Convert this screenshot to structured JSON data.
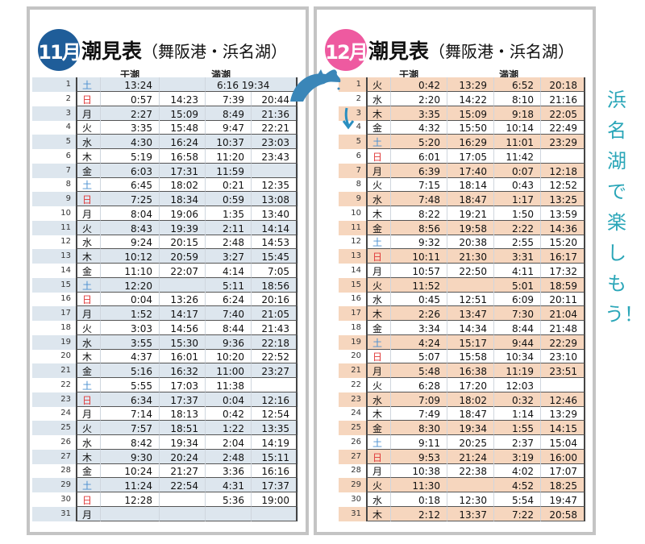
{
  "november": {
    "month_badge": "11月",
    "title": "潮見表",
    "subtitle": "（舞阪港・浜名湖）",
    "badge_color": "#1f5d99",
    "row_shade": "#dde6ee",
    "low_label": "干潮",
    "high_label": "満潮",
    "rows": [
      [
        "1",
        "土",
        "13:24",
        "",
        "6:16 19:34",
        ""
      ],
      [
        "2",
        "日",
        "0:57",
        "14:23",
        "7:39",
        "20:44"
      ],
      [
        "3",
        "月",
        "2:27",
        "15:09",
        "8:49",
        "21:36"
      ],
      [
        "4",
        "火",
        "3:35",
        "15:48",
        "9:47",
        "22:21"
      ],
      [
        "5",
        "水",
        "4:30",
        "16:24",
        "10:37",
        "23:03"
      ],
      [
        "6",
        "木",
        "5:19",
        "16:58",
        "11:20",
        "23:43"
      ],
      [
        "7",
        "金",
        "6:03",
        "17:31",
        "11:59",
        ""
      ],
      [
        "8",
        "土",
        "6:45",
        "18:02",
        "0:21",
        "12:35"
      ],
      [
        "9",
        "日",
        "7:25",
        "18:34",
        "0:59",
        "13:08"
      ],
      [
        "10",
        "月",
        "8:04",
        "19:06",
        "1:35",
        "13:40"
      ],
      [
        "11",
        "火",
        "8:43",
        "19:39",
        "2:11",
        "14:14"
      ],
      [
        "12",
        "水",
        "9:24",
        "20:15",
        "2:48",
        "14:53"
      ],
      [
        "13",
        "木",
        "10:12",
        "20:59",
        "3:27",
        "15:45"
      ],
      [
        "14",
        "金",
        "11:10",
        "22:07",
        "4:14",
        "7:05"
      ],
      [
        "15",
        "土",
        "12:20",
        "",
        "5:11",
        "18:56"
      ],
      [
        "16",
        "日",
        "0:04",
        "13:26",
        "6:24",
        "20:16"
      ],
      [
        "17",
        "月",
        "1:52",
        "14:17",
        "7:40",
        "21:05"
      ],
      [
        "18",
        "火",
        "3:03",
        "14:56",
        "8:44",
        "21:43"
      ],
      [
        "19",
        "水",
        "3:55",
        "15:30",
        "9:36",
        "22:18"
      ],
      [
        "20",
        "木",
        "4:37",
        "16:01",
        "10:20",
        "22:52"
      ],
      [
        "21",
        "金",
        "5:16",
        "16:32",
        "11:00",
        "23:27"
      ],
      [
        "22",
        "土",
        "5:55",
        "17:03",
        "11:38",
        ""
      ],
      [
        "23",
        "日",
        "6:34",
        "17:37",
        "0:04",
        "12:16"
      ],
      [
        "24",
        "月",
        "7:14",
        "18:13",
        "0:42",
        "12:54"
      ],
      [
        "25",
        "火",
        "7:57",
        "18:51",
        "1:22",
        "13:35"
      ],
      [
        "26",
        "水",
        "8:42",
        "19:34",
        "2:04",
        "14:19"
      ],
      [
        "27",
        "木",
        "9:30",
        "20:24",
        "2:48",
        "15:11"
      ],
      [
        "28",
        "金",
        "10:24",
        "21:27",
        "3:36",
        "16:16"
      ],
      [
        "29",
        "土",
        "11:24",
        "22:54",
        "4:31",
        "17:37"
      ],
      [
        "30",
        "日",
        "12:28",
        "",
        "5:36",
        "19:00"
      ],
      [
        "31",
        "月",
        "",
        "",
        "",
        ""
      ]
    ]
  },
  "december": {
    "month_badge": "12月",
    "title": "潮見表",
    "subtitle": "（舞阪港・浜名湖）",
    "badge_color": "#ee5aa0",
    "row_shade": "#f6d6be",
    "low_label": "干潮",
    "high_label": "満潮",
    "rows": [
      [
        "1",
        "火",
        "0:42",
        "13:29",
        "6:52",
        "20:18"
      ],
      [
        "2",
        "水",
        "2:20",
        "14:22",
        "8:10",
        "21:16"
      ],
      [
        "3",
        "木",
        "3:35",
        "15:09",
        "9:18",
        "22:05"
      ],
      [
        "4",
        "金",
        "4:32",
        "15:50",
        "10:14",
        "22:49"
      ],
      [
        "5",
        "土",
        "5:20",
        "16:29",
        "11:01",
        "23:29"
      ],
      [
        "6",
        "日",
        "6:01",
        "17:05",
        "11:42",
        ""
      ],
      [
        "7",
        "月",
        "6:39",
        "17:40",
        "0:07",
        "12:18"
      ],
      [
        "8",
        "火",
        "7:15",
        "18:14",
        "0:43",
        "12:52"
      ],
      [
        "9",
        "水",
        "7:48",
        "18:47",
        "1:17",
        "13:25"
      ],
      [
        "10",
        "木",
        "8:22",
        "19:21",
        "1:50",
        "13:59"
      ],
      [
        "11",
        "金",
        "8:56",
        "19:58",
        "2:22",
        "14:36"
      ],
      [
        "12",
        "土",
        "9:32",
        "20:38",
        "2:55",
        "15:20"
      ],
      [
        "13",
        "日",
        "10:11",
        "21:30",
        "3:31",
        "16:17"
      ],
      [
        "14",
        "月",
        "10:57",
        "22:50",
        "4:11",
        "17:32"
      ],
      [
        "15",
        "火",
        "11:52",
        "",
        "5:01",
        "18:59"
      ],
      [
        "16",
        "水",
        "0:45",
        "12:51",
        "6:09",
        "20:11"
      ],
      [
        "17",
        "木",
        "2:26",
        "13:47",
        "7:30",
        "21:04"
      ],
      [
        "18",
        "金",
        "3:34",
        "14:34",
        "8:44",
        "21:48"
      ],
      [
        "19",
        "土",
        "4:24",
        "15:17",
        "9:44",
        "22:29"
      ],
      [
        "20",
        "日",
        "5:07",
        "15:58",
        "10:34",
        "23:10"
      ],
      [
        "21",
        "月",
        "5:48",
        "16:38",
        "11:19",
        "23:51"
      ],
      [
        "22",
        "火",
        "6:28",
        "17:20",
        "12:03",
        ""
      ],
      [
        "23",
        "水",
        "7:09",
        "18:02",
        "0:32",
        "12:46"
      ],
      [
        "24",
        "木",
        "7:49",
        "18:47",
        "1:14",
        "13:29"
      ],
      [
        "25",
        "金",
        "8:30",
        "19:34",
        "1:55",
        "14:15"
      ],
      [
        "26",
        "土",
        "9:11",
        "20:25",
        "2:37",
        "15:04"
      ],
      [
        "27",
        "日",
        "9:53",
        "21:24",
        "3:19",
        "16:00"
      ],
      [
        "28",
        "月",
        "10:38",
        "22:38",
        "4:02",
        "17:07"
      ],
      [
        "29",
        "火",
        "11:30",
        "",
        "4:52",
        "18:25"
      ],
      [
        "30",
        "水",
        "0:18",
        "12:30",
        "5:54",
        "19:47"
      ],
      [
        "31",
        "木",
        "2:12",
        "13:37",
        "7:22",
        "20:58"
      ]
    ]
  },
  "side_message": "浜名湖で楽しもう！",
  "icons": {
    "dolphin": "dolphin-icon",
    "arrow": "arrow-down-icon"
  }
}
